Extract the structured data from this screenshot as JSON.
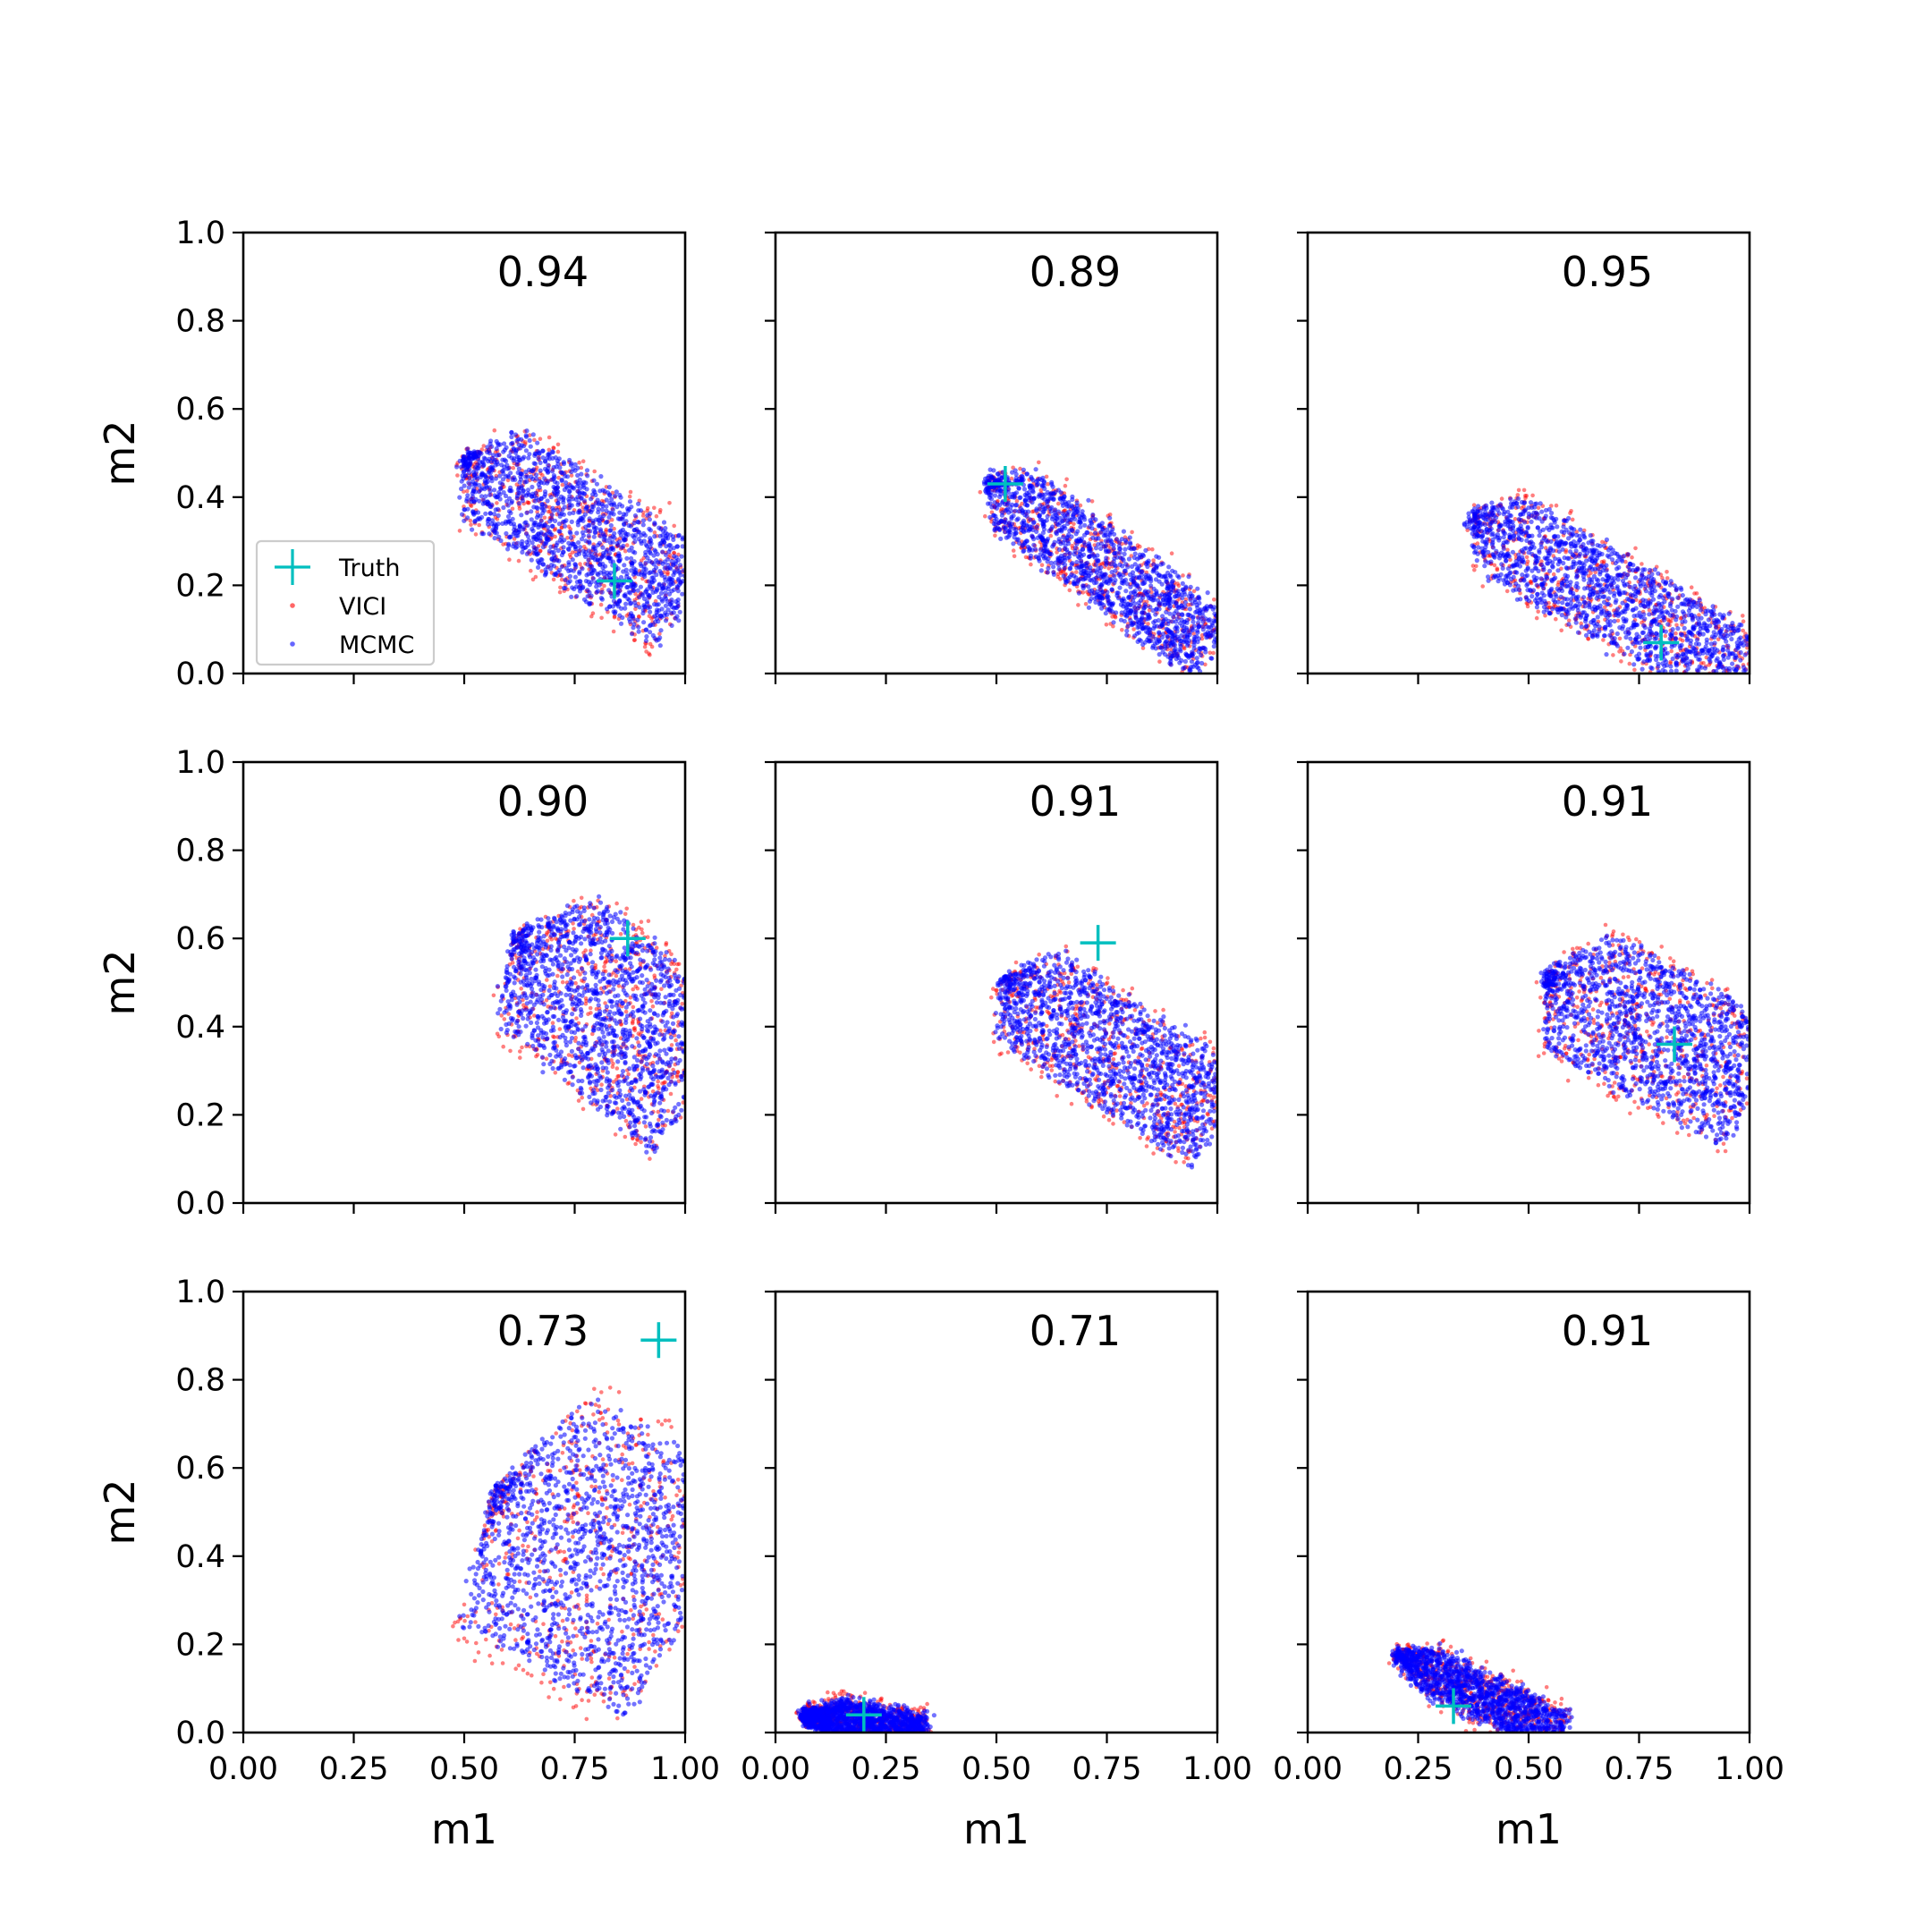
{
  "figure": {
    "xlabel": "m1",
    "ylabel": "m2",
    "colors": {
      "truth": "#00BFBF",
      "vici": "#FF0000",
      "mcmc": "#0000FF",
      "axes": "#000000",
      "legend_border": "#CCCCCC"
    },
    "legend": {
      "entries": [
        {
          "label": "Truth",
          "marker": "plus",
          "color": "#00BFBF"
        },
        {
          "label": "VICI",
          "marker": "dot",
          "color": "#FF0000"
        },
        {
          "label": "MCMC",
          "marker": "dot",
          "color": "#0000FF"
        }
      ],
      "placement": "lower-left of top-left panel"
    }
  },
  "chart_data": [
    {
      "type": "scatter",
      "row": 0,
      "col": 0,
      "overlap": "0.94",
      "truth": [
        0.84,
        0.21
      ],
      "region": {
        "tip": [
          0.5,
          0.49
        ],
        "dir": [
          1.0,
          -0.65
        ],
        "lenMin": 0.0,
        "lenMax": 0.6,
        "halfWidth": 0.12,
        "taper": 0.03
      },
      "xlim": [
        0,
        1
      ],
      "ylim": [
        0,
        1
      ],
      "xticks": [
        "0.00",
        "0.25",
        "0.50",
        "0.75",
        "1.00"
      ],
      "yticks": [
        "0.0",
        "0.2",
        "0.4",
        "0.6",
        "0.8",
        "1.0"
      ]
    },
    {
      "type": "scatter",
      "row": 0,
      "col": 1,
      "overlap": "0.89",
      "truth": [
        0.52,
        0.43
      ],
      "region": {
        "tip": [
          0.48,
          0.44
        ],
        "dir": [
          1.0,
          -0.75
        ],
        "lenMin": 0.0,
        "lenMax": 0.65,
        "halfWidth": 0.08,
        "taper": 0.03
      },
      "xlim": [
        0,
        1
      ],
      "ylim": [
        0,
        1
      ],
      "xticks": [
        "0.00",
        "0.25",
        "0.50",
        "0.75",
        "1.00"
      ],
      "yticks": [
        "0.0",
        "0.2",
        "0.4",
        "0.6",
        "0.8",
        "1.0"
      ]
    },
    {
      "type": "scatter",
      "row": 0,
      "col": 2,
      "overlap": "0.95",
      "truth": [
        0.8,
        0.07
      ],
      "region": {
        "tip": [
          0.37,
          0.36
        ],
        "dir": [
          1.0,
          -0.6
        ],
        "lenMin": 0.0,
        "lenMax": 0.72,
        "halfWidth": 0.1,
        "taper": 0.03
      },
      "xlim": [
        0,
        1
      ],
      "ylim": [
        0,
        1
      ],
      "xticks": [
        "0.00",
        "0.25",
        "0.50",
        "0.75",
        "1.00"
      ],
      "yticks": [
        "0.0",
        "0.2",
        "0.4",
        "0.6",
        "0.8",
        "1.0"
      ]
    },
    {
      "type": "scatter",
      "row": 1,
      "col": 0,
      "overlap": "0.90",
      "truth": [
        0.87,
        0.6
      ],
      "region": {
        "tip": [
          0.62,
          0.61
        ],
        "dir": [
          1.0,
          -0.85
        ],
        "lenMin": 0.0,
        "lenMax": 0.55,
        "halfWidth": 0.18,
        "taper": 0.02
      },
      "xlim": [
        0,
        1
      ],
      "ylim": [
        0,
        1
      ],
      "xticks": [
        "0.00",
        "0.25",
        "0.50",
        "0.75",
        "1.00"
      ],
      "yticks": [
        "0.0",
        "0.2",
        "0.4",
        "0.6",
        "0.8",
        "1.0"
      ]
    },
    {
      "type": "scatter",
      "row": 1,
      "col": 1,
      "overlap": "0.91",
      "truth": [
        0.73,
        0.59
      ],
      "region": {
        "tip": [
          0.51,
          0.51
        ],
        "dir": [
          1.0,
          -0.65
        ],
        "lenMin": 0.0,
        "lenMax": 0.6,
        "halfWidth": 0.12,
        "taper": 0.03
      },
      "xlim": [
        0,
        1
      ],
      "ylim": [
        0,
        1
      ],
      "xticks": [
        "0.00",
        "0.25",
        "0.50",
        "0.75",
        "1.00"
      ],
      "yticks": [
        "0.0",
        "0.2",
        "0.4",
        "0.6",
        "0.8",
        "1.0"
      ]
    },
    {
      "type": "scatter",
      "row": 1,
      "col": 2,
      "overlap": "0.91",
      "truth": [
        0.83,
        0.36
      ],
      "region": {
        "tip": [
          0.54,
          0.52
        ],
        "dir": [
          1.0,
          -0.55
        ],
        "lenMin": 0.0,
        "lenMax": 0.55,
        "halfWidth": 0.15,
        "taper": 0.03
      },
      "xlim": [
        0,
        1
      ],
      "ylim": [
        0,
        1
      ],
      "xticks": [
        "0.00",
        "0.25",
        "0.50",
        "0.75",
        "1.00"
      ],
      "yticks": [
        "0.0",
        "0.2",
        "0.4",
        "0.6",
        "0.8",
        "1.0"
      ]
    },
    {
      "type": "scatter",
      "row": 2,
      "col": 0,
      "overlap": "0.73",
      "truth": [
        0.94,
        0.89
      ],
      "region": {
        "tip": [
          0.57,
          0.55
        ],
        "dir": [
          1.0,
          -0.6
        ],
        "lenMin": 0.0,
        "lenMax": 0.52,
        "halfWidth": 0.3,
        "taper": 0.0
      },
      "xlim": [
        0,
        1
      ],
      "ylim": [
        0,
        1
      ],
      "xticks": [
        "0.00",
        "0.25",
        "0.50",
        "0.75",
        "1.00"
      ],
      "yticks": [
        "0.0",
        "0.2",
        "0.4",
        "0.6",
        "0.8",
        "1.0"
      ]
    },
    {
      "type": "scatter",
      "row": 2,
      "col": 1,
      "overlap": "0.71",
      "truth": [
        0.2,
        0.04
      ],
      "region": {
        "tip": [
          0.06,
          0.04
        ],
        "dir": [
          1.0,
          -0.2
        ],
        "lenMin": 0.0,
        "lenMax": 0.28,
        "halfWidth": 0.05,
        "taper": 0.02
      },
      "xlim": [
        0,
        1
      ],
      "ylim": [
        0,
        1
      ],
      "xticks": [
        "0.00",
        "0.25",
        "0.50",
        "0.75",
        "1.00"
      ],
      "yticks": [
        "0.0",
        "0.2",
        "0.4",
        "0.6",
        "0.8",
        "1.0"
      ]
    },
    {
      "type": "scatter",
      "row": 2,
      "col": 2,
      "overlap": "0.91",
      "truth": [
        0.33,
        0.06
      ],
      "region": {
        "tip": [
          0.2,
          0.18
        ],
        "dir": [
          1.0,
          -0.5
        ],
        "lenMin": 0.0,
        "lenMax": 0.42,
        "halfWidth": 0.05,
        "taper": 0.02
      },
      "xlim": [
        0,
        1
      ],
      "ylim": [
        0,
        1
      ],
      "xticks": [
        "0.00",
        "0.25",
        "0.50",
        "0.75",
        "1.00"
      ],
      "yticks": [
        "0.0",
        "0.2",
        "0.4",
        "0.6",
        "0.8",
        "1.0"
      ]
    }
  ]
}
